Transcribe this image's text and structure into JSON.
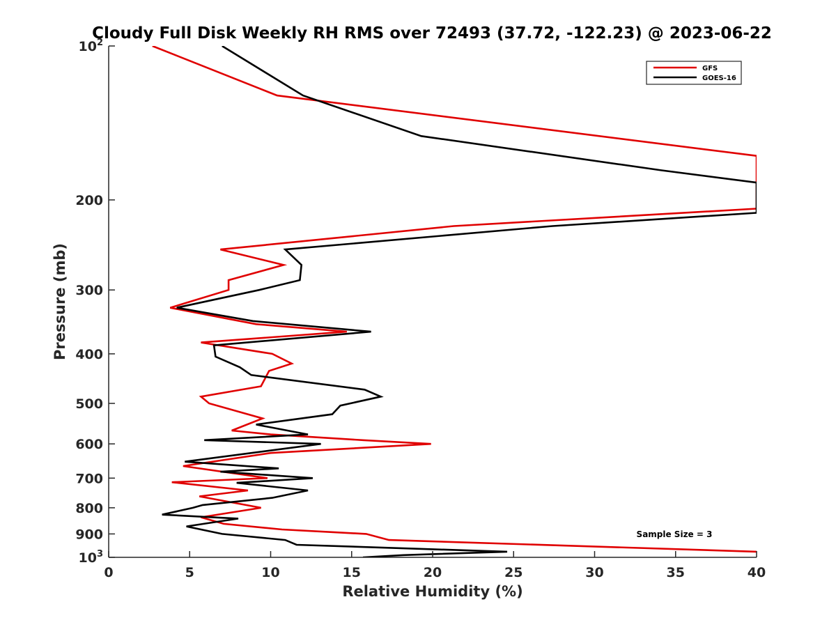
{
  "chart_data": {
    "type": "line",
    "title": "Cloudy Full Disk Weekly RH RMS over 72493 (37.72, -122.23) @ 2023-06-22",
    "xlabel": "Relative Humidity (%)",
    "ylabel": "Pressure (mb)",
    "xlim": [
      0,
      40
    ],
    "ylim": [
      100,
      1000
    ],
    "y_scale": "log",
    "y_reversed": true,
    "x_ticks": [
      0,
      5,
      10,
      15,
      20,
      25,
      30,
      35,
      40
    ],
    "x_tick_labels": [
      "0",
      "5",
      "10",
      "15",
      "20",
      "25",
      "30",
      "35",
      "40"
    ],
    "y_ticks": [
      100,
      200,
      300,
      400,
      500,
      600,
      700,
      800,
      900,
      1000
    ],
    "y_tick_labels": [
      {
        "base": "10",
        "sup": "2"
      },
      {
        "base": "200",
        "sup": ""
      },
      {
        "base": "300",
        "sup": ""
      },
      {
        "base": "400",
        "sup": ""
      },
      {
        "base": "500",
        "sup": ""
      },
      {
        "base": "600",
        "sup": ""
      },
      {
        "base": "700",
        "sup": ""
      },
      {
        "base": "800",
        "sup": ""
      },
      {
        "base": "900",
        "sup": ""
      },
      {
        "base": "10",
        "sup": "3"
      }
    ],
    "grid": false,
    "legend_position": "top-right",
    "annotation": "Sample Size = 3",
    "series": [
      {
        "name": "GFS",
        "color": "#e00000",
        "points": [
          [
            2.7,
            100
          ],
          [
            10.4,
            125
          ],
          [
            40,
            164
          ],
          [
            40,
            208
          ],
          [
            21.3,
            225
          ],
          [
            6.9,
            250
          ],
          [
            10.8,
            268
          ],
          [
            7.4,
            287
          ],
          [
            7.4,
            300
          ],
          [
            3.8,
            325
          ],
          [
            9.1,
            350
          ],
          [
            14.7,
            362
          ],
          [
            5.7,
            380
          ],
          [
            10.1,
            400
          ],
          [
            11.3,
            418
          ],
          [
            9.9,
            432
          ],
          [
            9.4,
            463
          ],
          [
            5.7,
            485
          ],
          [
            6.2,
            500
          ],
          [
            9.5,
            535
          ],
          [
            7.6,
            565
          ],
          [
            10.0,
            575
          ],
          [
            15.7,
            590
          ],
          [
            19.9,
            600
          ],
          [
            10.0,
            625
          ],
          [
            4.6,
            663
          ],
          [
            9.8,
            700
          ],
          [
            3.9,
            713
          ],
          [
            8.6,
            740
          ],
          [
            5.6,
            760
          ],
          [
            9.4,
            800
          ],
          [
            5.7,
            835
          ],
          [
            7.1,
            860
          ],
          [
            10.7,
            882
          ],
          [
            15.9,
            900
          ],
          [
            17.3,
            925
          ],
          [
            40,
            975
          ]
        ]
      },
      {
        "name": "GOES-16",
        "color": "#000000",
        "points": [
          [
            7.0,
            100
          ],
          [
            12.0,
            125
          ],
          [
            19.3,
            150
          ],
          [
            34.1,
            175
          ],
          [
            40,
            185
          ],
          [
            40,
            212
          ],
          [
            27.4,
            225
          ],
          [
            10.9,
            250
          ],
          [
            11.9,
            268
          ],
          [
            11.8,
            287
          ],
          [
            9.3,
            300
          ],
          [
            4.2,
            325
          ],
          [
            8.9,
            345
          ],
          [
            16.2,
            362
          ],
          [
            6.5,
            385
          ],
          [
            6.6,
            405
          ],
          [
            8.1,
            425
          ],
          [
            8.8,
            440
          ],
          [
            15.8,
            470
          ],
          [
            16.8,
            485
          ],
          [
            14.3,
            505
          ],
          [
            13.8,
            525
          ],
          [
            9.1,
            550
          ],
          [
            12.3,
            575
          ],
          [
            5.9,
            590
          ],
          [
            13.1,
            600
          ],
          [
            4.7,
            650
          ],
          [
            10.5,
            670
          ],
          [
            6.9,
            680
          ],
          [
            12.6,
            700
          ],
          [
            7.9,
            715
          ],
          [
            12.3,
            740
          ],
          [
            10.1,
            765
          ],
          [
            5.8,
            790
          ],
          [
            5.2,
            800
          ],
          [
            3.3,
            825
          ],
          [
            8.0,
            840
          ],
          [
            4.8,
            870
          ],
          [
            7.0,
            900
          ],
          [
            10.9,
            925
          ],
          [
            11.6,
            945
          ],
          [
            24.6,
            975
          ],
          [
            18.2,
            990
          ],
          [
            15.7,
            1000
          ]
        ]
      }
    ]
  }
}
